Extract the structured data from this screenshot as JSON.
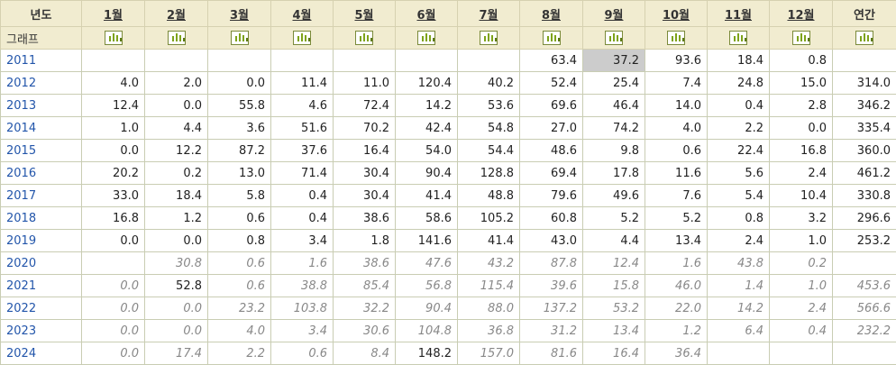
{
  "header": {
    "year_label": "년도",
    "months": [
      "1월",
      "2월",
      "3월",
      "4월",
      "5월",
      "6월",
      "7월",
      "8월",
      "9월",
      "10월",
      "11월",
      "12월"
    ],
    "total_label": "연간"
  },
  "graph_row_label": "그래프",
  "chart_icon": "bar-chart-icon",
  "rows": [
    {
      "year": "2011",
      "cells": [
        {
          "v": ""
        },
        {
          "v": ""
        },
        {
          "v": ""
        },
        {
          "v": ""
        },
        {
          "v": ""
        },
        {
          "v": ""
        },
        {
          "v": ""
        },
        {
          "v": "63.4"
        },
        {
          "v": "37.2",
          "s": "sel"
        },
        {
          "v": "93.6"
        },
        {
          "v": "18.4"
        },
        {
          "v": "0.8"
        },
        {
          "v": ""
        }
      ]
    },
    {
      "year": "2012",
      "cells": [
        {
          "v": "4.0"
        },
        {
          "v": "2.0"
        },
        {
          "v": "0.0"
        },
        {
          "v": "11.4"
        },
        {
          "v": "11.0"
        },
        {
          "v": "120.4"
        },
        {
          "v": "40.2"
        },
        {
          "v": "52.4"
        },
        {
          "v": "25.4"
        },
        {
          "v": "7.4"
        },
        {
          "v": "24.8"
        },
        {
          "v": "15.0"
        },
        {
          "v": "314.0"
        }
      ]
    },
    {
      "year": "2013",
      "cells": [
        {
          "v": "12.4"
        },
        {
          "v": "0.0"
        },
        {
          "v": "55.8"
        },
        {
          "v": "4.6"
        },
        {
          "v": "72.4"
        },
        {
          "v": "14.2"
        },
        {
          "v": "53.6"
        },
        {
          "v": "69.6"
        },
        {
          "v": "46.4"
        },
        {
          "v": "14.0"
        },
        {
          "v": "0.4"
        },
        {
          "v": "2.8"
        },
        {
          "v": "346.2"
        }
      ]
    },
    {
      "year": "2014",
      "cells": [
        {
          "v": "1.0"
        },
        {
          "v": "4.4"
        },
        {
          "v": "3.6"
        },
        {
          "v": "51.6"
        },
        {
          "v": "70.2"
        },
        {
          "v": "42.4"
        },
        {
          "v": "54.8"
        },
        {
          "v": "27.0"
        },
        {
          "v": "74.2"
        },
        {
          "v": "4.0"
        },
        {
          "v": "2.2"
        },
        {
          "v": "0.0"
        },
        {
          "v": "335.4"
        }
      ]
    },
    {
      "year": "2015",
      "cells": [
        {
          "v": "0.0"
        },
        {
          "v": "12.2"
        },
        {
          "v": "87.2"
        },
        {
          "v": "37.6"
        },
        {
          "v": "16.4"
        },
        {
          "v": "54.0"
        },
        {
          "v": "54.4"
        },
        {
          "v": "48.6"
        },
        {
          "v": "9.8"
        },
        {
          "v": "0.6"
        },
        {
          "v": "22.4"
        },
        {
          "v": "16.8"
        },
        {
          "v": "360.0"
        }
      ]
    },
    {
      "year": "2016",
      "cells": [
        {
          "v": "20.2"
        },
        {
          "v": "0.2"
        },
        {
          "v": "13.0"
        },
        {
          "v": "71.4"
        },
        {
          "v": "30.4"
        },
        {
          "v": "90.4"
        },
        {
          "v": "128.8"
        },
        {
          "v": "69.4"
        },
        {
          "v": "17.8"
        },
        {
          "v": "11.6"
        },
        {
          "v": "5.6"
        },
        {
          "v": "2.4"
        },
        {
          "v": "461.2"
        }
      ]
    },
    {
      "year": "2017",
      "cells": [
        {
          "v": "33.0"
        },
        {
          "v": "18.4"
        },
        {
          "v": "5.8"
        },
        {
          "v": "0.4"
        },
        {
          "v": "30.4"
        },
        {
          "v": "41.4"
        },
        {
          "v": "48.8"
        },
        {
          "v": "79.6"
        },
        {
          "v": "49.6"
        },
        {
          "v": "7.6"
        },
        {
          "v": "5.4"
        },
        {
          "v": "10.4"
        },
        {
          "v": "330.8"
        }
      ]
    },
    {
      "year": "2018",
      "cells": [
        {
          "v": "16.8"
        },
        {
          "v": "1.2"
        },
        {
          "v": "0.6"
        },
        {
          "v": "0.4"
        },
        {
          "v": "38.6"
        },
        {
          "v": "58.6"
        },
        {
          "v": "105.2"
        },
        {
          "v": "60.8"
        },
        {
          "v": "5.2"
        },
        {
          "v": "5.2"
        },
        {
          "v": "0.8"
        },
        {
          "v": "3.2"
        },
        {
          "v": "296.6"
        }
      ]
    },
    {
      "year": "2019",
      "cells": [
        {
          "v": "0.0"
        },
        {
          "v": "0.0"
        },
        {
          "v": "0.8"
        },
        {
          "v": "3.4"
        },
        {
          "v": "1.8"
        },
        {
          "v": "141.6"
        },
        {
          "v": "41.4"
        },
        {
          "v": "43.0"
        },
        {
          "v": "4.4"
        },
        {
          "v": "13.4"
        },
        {
          "v": "2.4"
        },
        {
          "v": "1.0"
        },
        {
          "v": "253.2"
        }
      ]
    },
    {
      "year": "2020",
      "cells": [
        {
          "v": ""
        },
        {
          "v": "30.8",
          "s": "it"
        },
        {
          "v": "0.6",
          "s": "it"
        },
        {
          "v": "1.6",
          "s": "it"
        },
        {
          "v": "38.6",
          "s": "it"
        },
        {
          "v": "47.6",
          "s": "it"
        },
        {
          "v": "43.2",
          "s": "it"
        },
        {
          "v": "87.8",
          "s": "it"
        },
        {
          "v": "12.4",
          "s": "it"
        },
        {
          "v": "1.6",
          "s": "it"
        },
        {
          "v": "43.8",
          "s": "it"
        },
        {
          "v": "0.2",
          "s": "it"
        },
        {
          "v": ""
        }
      ]
    },
    {
      "year": "2021",
      "cells": [
        {
          "v": "0.0",
          "s": "it"
        },
        {
          "v": "52.8"
        },
        {
          "v": "0.6",
          "s": "it"
        },
        {
          "v": "38.8",
          "s": "it"
        },
        {
          "v": "85.4",
          "s": "it"
        },
        {
          "v": "56.8",
          "s": "it"
        },
        {
          "v": "115.4",
          "s": "it"
        },
        {
          "v": "39.6",
          "s": "it"
        },
        {
          "v": "15.8",
          "s": "it"
        },
        {
          "v": "46.0",
          "s": "it"
        },
        {
          "v": "1.4",
          "s": "it"
        },
        {
          "v": "1.0",
          "s": "it"
        },
        {
          "v": "453.6",
          "s": "it"
        }
      ]
    },
    {
      "year": "2022",
      "cells": [
        {
          "v": "0.0",
          "s": "it"
        },
        {
          "v": "0.0",
          "s": "it"
        },
        {
          "v": "23.2",
          "s": "it"
        },
        {
          "v": "103.8",
          "s": "it"
        },
        {
          "v": "32.2",
          "s": "it"
        },
        {
          "v": "90.4",
          "s": "it"
        },
        {
          "v": "88.0",
          "s": "it"
        },
        {
          "v": "137.2",
          "s": "it"
        },
        {
          "v": "53.2",
          "s": "it"
        },
        {
          "v": "22.0",
          "s": "it"
        },
        {
          "v": "14.2",
          "s": "it"
        },
        {
          "v": "2.4",
          "s": "it"
        },
        {
          "v": "566.6",
          "s": "it"
        }
      ]
    },
    {
      "year": "2023",
      "cells": [
        {
          "v": "0.0",
          "s": "it"
        },
        {
          "v": "0.0",
          "s": "it"
        },
        {
          "v": "4.0",
          "s": "it"
        },
        {
          "v": "3.4",
          "s": "it"
        },
        {
          "v": "30.6",
          "s": "it"
        },
        {
          "v": "104.8",
          "s": "it"
        },
        {
          "v": "36.8",
          "s": "it"
        },
        {
          "v": "31.2",
          "s": "it"
        },
        {
          "v": "13.4",
          "s": "it"
        },
        {
          "v": "1.2",
          "s": "it"
        },
        {
          "v": "6.4",
          "s": "it"
        },
        {
          "v": "0.4",
          "s": "it"
        },
        {
          "v": "232.2",
          "s": "it"
        }
      ]
    },
    {
      "year": "2024",
      "cells": [
        {
          "v": "0.0",
          "s": "it"
        },
        {
          "v": "17.4",
          "s": "it"
        },
        {
          "v": "2.2",
          "s": "it"
        },
        {
          "v": "0.6",
          "s": "it"
        },
        {
          "v": "8.4",
          "s": "it"
        },
        {
          "v": "148.2"
        },
        {
          "v": "157.0",
          "s": "it"
        },
        {
          "v": "81.6",
          "s": "it"
        },
        {
          "v": "16.4",
          "s": "it"
        },
        {
          "v": "36.4",
          "s": "it"
        },
        {
          "v": ""
        },
        {
          "v": ""
        },
        {
          "v": ""
        }
      ]
    }
  ]
}
